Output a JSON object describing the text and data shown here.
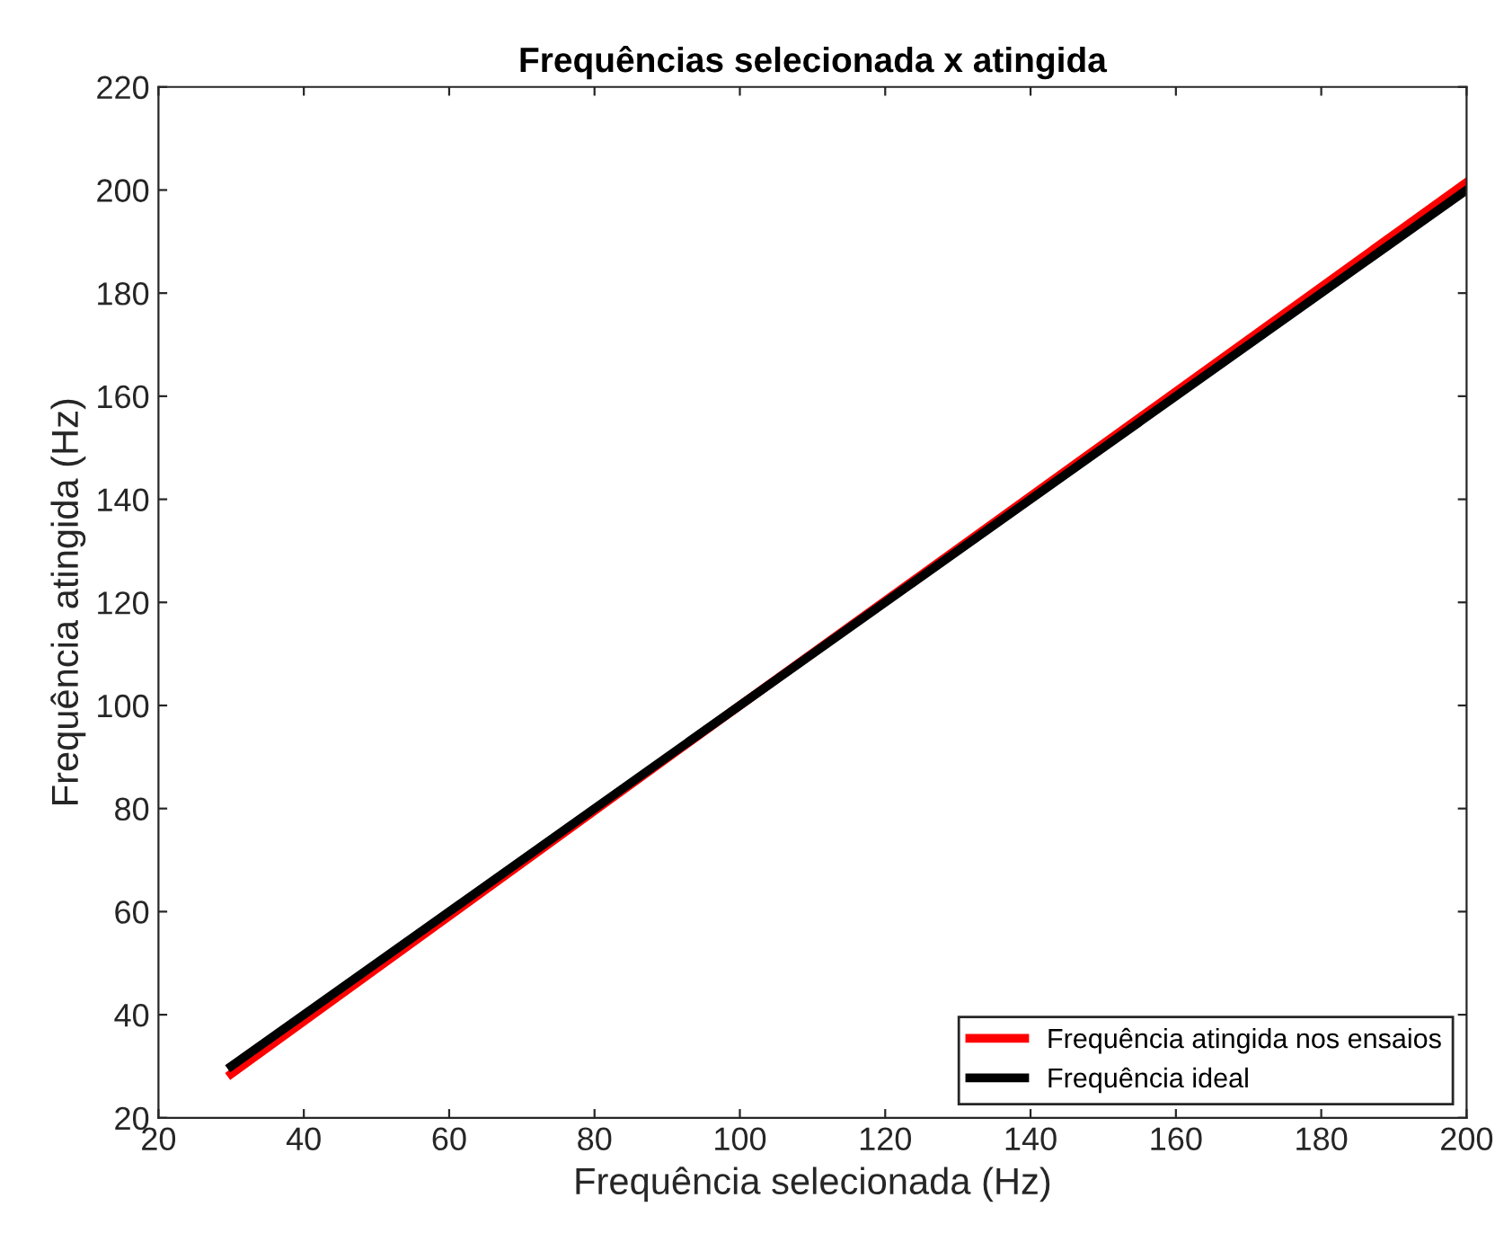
{
  "chart_data": {
    "type": "line",
    "title": "Frequências selecionada x atingida",
    "xlabel": "Frequência selecionada (Hz)",
    "ylabel": "Frequência atingida (Hz)",
    "x": [
      30,
      100,
      200
    ],
    "series": [
      {
        "name": "Frequência atingida nos ensaios",
        "color": "#ff0000",
        "values": [
          28.5,
          100,
          201.5
        ]
      },
      {
        "name": "Frequência ideal",
        "color": "#000000",
        "values": [
          30,
          100,
          200
        ]
      }
    ],
    "xlim": [
      20,
      200
    ],
    "xticks": [
      20,
      40,
      60,
      80,
      100,
      120,
      140,
      160,
      180,
      200
    ],
    "ylim": [
      20,
      220
    ],
    "yticks": [
      20,
      40,
      60,
      80,
      100,
      120,
      140,
      160,
      180,
      200,
      220
    ],
    "grid": false,
    "legend": "bottom right",
    "marker": "none",
    "line_style": "solid"
  }
}
